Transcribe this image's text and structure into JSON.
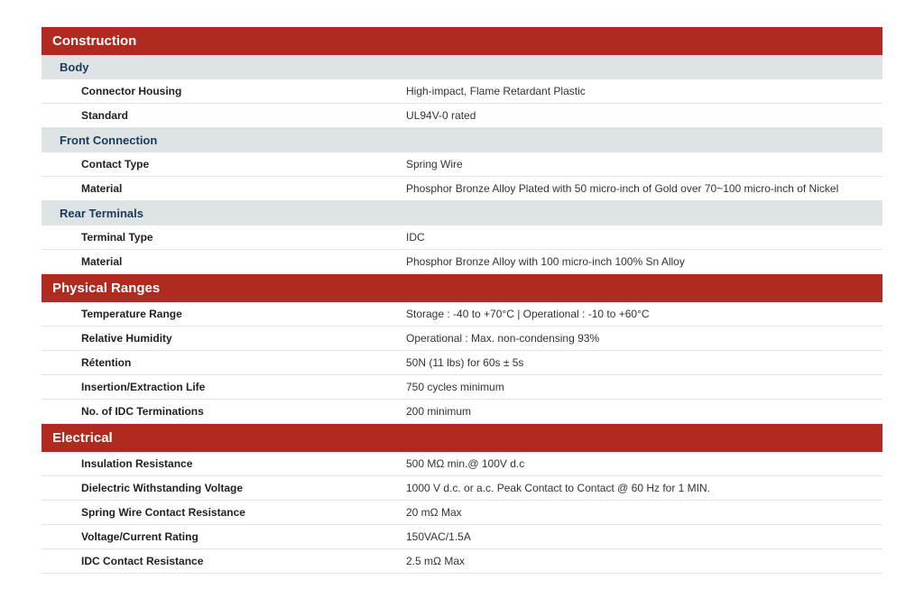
{
  "colors": {
    "section_header_bg": "#b02b1f",
    "section_header_text": "#ffffff",
    "sub_header_bg": "#dee3e3",
    "sub_header_text": "#1a3b5d",
    "row_border": "#e3e3e3"
  },
  "sections": {
    "construction": {
      "title": "Construction",
      "body": {
        "title": "Body",
        "connector_housing_label": "Connector Housing",
        "connector_housing_value": "High-impact, Flame Retardant Plastic",
        "standard_label": "Standard",
        "standard_value": "UL94V-0 rated"
      },
      "front_connection": {
        "title": "Front Connection",
        "contact_type_label": "Contact Type",
        "contact_type_value": "Spring Wire",
        "material_label": "Material",
        "material_value": "Phosphor Bronze Alloy Plated with 50 micro-inch of Gold over 70~100 micro-inch of Nickel"
      },
      "rear_terminals": {
        "title": "Rear Terminals",
        "terminal_type_label": "Terminal Type",
        "terminal_type_value": "IDC",
        "material_label": "Material",
        "material_value": "Phosphor Bronze Alloy with 100 micro-inch 100% Sn Alloy"
      }
    },
    "physical": {
      "title": "Physical Ranges",
      "temperature_range_label": "Temperature Range",
      "temperature_range_value": "Storage : -40 to +70°C | Operational : -10 to +60°C",
      "relative_humidity_label": "Relative Humidity",
      "relative_humidity_value": "Operational : Max. non-condensing 93%",
      "retention_label": "Rétention",
      "retention_value": "50N (11 lbs) for 60s ± 5s",
      "insertion_label": "Insertion/Extraction Life",
      "insertion_value": "750 cycles minimum",
      "idc_terminations_label": "No. of IDC Terminations",
      "idc_terminations_value": "200 minimum"
    },
    "electrical": {
      "title": "Electrical",
      "insulation_label": "Insulation Resistance",
      "insulation_value": "500 MΩ min.@ 100V d.c",
      "dielectric_label": "Dielectric Withstanding Voltage",
      "dielectric_value": "1000 V d.c. or a.c. Peak Contact to Contact @ 60 Hz for 1 MIN.",
      "spring_wire_label": "Spring Wire Contact Resistance",
      "spring_wire_value": "20 mΩ Max",
      "voltage_label": "Voltage/Current Rating",
      "voltage_value": "150VAC/1.5A",
      "idc_contact_label": "IDC Contact Resistance",
      "idc_contact_value": "2.5 mΩ Max"
    }
  }
}
